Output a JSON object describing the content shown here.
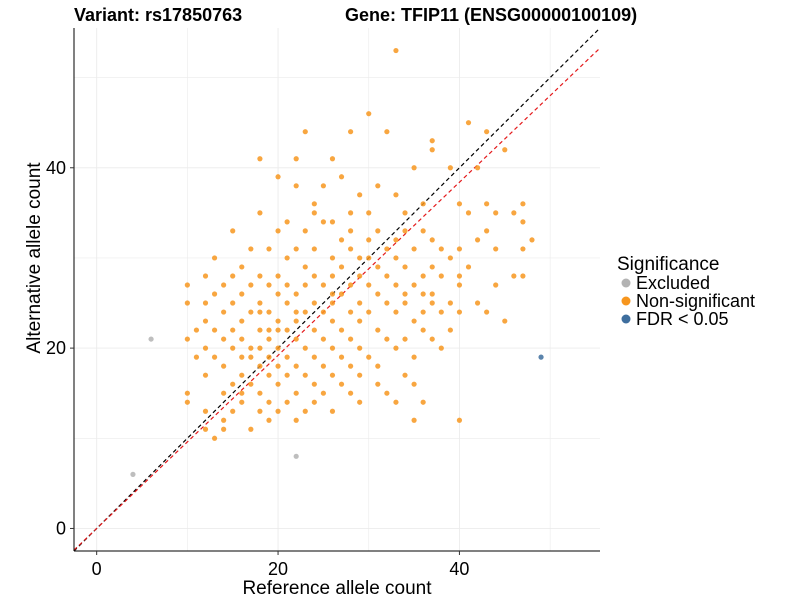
{
  "titles": {
    "variant": "Variant: rs17850763",
    "gene": "Gene: TFIP11 (ENSG00000100109)"
  },
  "chart_data": {
    "type": "scatter",
    "xlabel": "Reference allele count",
    "ylabel": "Alternative allele count",
    "xlim": [
      -2.5,
      55.5
    ],
    "ylim": [
      -2.5,
      55.5
    ],
    "xticks": [
      0,
      20,
      40
    ],
    "yticks": [
      0,
      20,
      40
    ],
    "grid": true,
    "legend_position": "right",
    "lines": [
      {
        "name": "identity",
        "color": "#000000",
        "style": "dashed",
        "intercept": 0,
        "slope": 1
      },
      {
        "name": "fit",
        "color": "#e41a1c",
        "style": "dashed",
        "intercept": 0,
        "slope": 0.96
      }
    ],
    "legend": {
      "title": "Significance",
      "entries": [
        {
          "label": "Excluded",
          "color": "#b3b3b3"
        },
        {
          "label": "Non-significant",
          "color": "#f7961e"
        },
        {
          "label": "FDR < 0.05",
          "color": "#3e6e9e"
        }
      ]
    },
    "series": [
      {
        "name": "Excluded",
        "color": "#b3b3b3",
        "points": [
          [
            4,
            6
          ],
          [
            6,
            21
          ],
          [
            22,
            8
          ]
        ]
      },
      {
        "name": "FDR < 0.05",
        "color": "#3e6e9e",
        "points": [
          [
            49,
            19
          ]
        ]
      },
      {
        "name": "Non-significant",
        "color": "#f7961e",
        "points": [
          [
            33,
            53
          ],
          [
            30,
            46
          ],
          [
            41,
            45
          ],
          [
            23,
            44
          ],
          [
            28,
            44
          ],
          [
            32,
            44
          ],
          [
            43,
            44
          ],
          [
            37,
            43
          ],
          [
            37,
            42
          ],
          [
            45,
            42
          ],
          [
            18,
            41
          ],
          [
            22,
            41
          ],
          [
            26,
            41
          ],
          [
            42,
            40
          ],
          [
            20,
            39
          ],
          [
            35,
            40
          ],
          [
            39,
            40
          ],
          [
            27,
            39
          ],
          [
            25,
            38
          ],
          [
            22,
            38
          ],
          [
            31,
            38
          ],
          [
            29,
            37
          ],
          [
            33,
            37
          ],
          [
            36,
            36
          ],
          [
            40,
            36
          ],
          [
            47,
            36
          ],
          [
            24,
            36
          ],
          [
            43,
            36
          ],
          [
            18,
            35
          ],
          [
            24,
            35
          ],
          [
            30,
            35
          ],
          [
            41,
            35
          ],
          [
            44,
            35
          ],
          [
            25,
            34
          ],
          [
            34,
            35
          ],
          [
            21,
            34
          ],
          [
            26,
            34
          ],
          [
            28,
            33
          ],
          [
            34,
            33
          ],
          [
            36,
            33
          ],
          [
            47,
            34
          ],
          [
            15,
            33
          ],
          [
            20,
            33
          ],
          [
            23,
            33
          ],
          [
            31,
            33
          ],
          [
            33,
            32
          ],
          [
            37,
            32
          ],
          [
            42,
            32
          ],
          [
            48,
            32
          ],
          [
            17,
            31
          ],
          [
            19,
            31
          ],
          [
            22,
            31
          ],
          [
            24,
            31
          ],
          [
            28,
            31
          ],
          [
            32,
            31
          ],
          [
            35,
            31
          ],
          [
            38,
            31
          ],
          [
            40,
            31
          ],
          [
            44,
            31
          ],
          [
            26,
            30
          ],
          [
            29,
            30
          ],
          [
            30,
            30
          ],
          [
            33,
            30
          ],
          [
            39,
            30
          ],
          [
            13,
            30
          ],
          [
            21,
            30
          ],
          [
            16,
            29
          ],
          [
            23,
            29
          ],
          [
            27,
            29
          ],
          [
            31,
            29
          ],
          [
            34,
            29
          ],
          [
            37,
            29
          ],
          [
            41,
            29
          ],
          [
            46,
            28
          ],
          [
            47,
            28
          ],
          [
            12,
            28
          ],
          [
            15,
            28
          ],
          [
            18,
            28
          ],
          [
            20,
            28
          ],
          [
            24,
            28
          ],
          [
            26,
            28
          ],
          [
            29,
            28
          ],
          [
            32,
            28
          ],
          [
            36,
            28
          ],
          [
            38,
            28
          ],
          [
            10,
            27
          ],
          [
            14,
            27
          ],
          [
            17,
            27
          ],
          [
            19,
            27
          ],
          [
            21,
            27
          ],
          [
            23,
            27
          ],
          [
            25,
            27
          ],
          [
            28,
            27
          ],
          [
            30,
            27
          ],
          [
            33,
            27
          ],
          [
            35,
            27
          ],
          [
            40,
            27
          ],
          [
            44,
            27
          ],
          [
            13,
            26
          ],
          [
            16,
            26
          ],
          [
            20,
            26
          ],
          [
            22,
            26
          ],
          [
            27,
            26
          ],
          [
            31,
            26
          ],
          [
            36,
            26
          ],
          [
            10,
            25
          ],
          [
            12,
            25
          ],
          [
            15,
            25
          ],
          [
            18,
            25
          ],
          [
            21,
            25
          ],
          [
            24,
            25
          ],
          [
            26,
            25
          ],
          [
            29,
            25
          ],
          [
            32,
            25
          ],
          [
            34,
            25
          ],
          [
            37,
            25
          ],
          [
            39,
            25
          ],
          [
            42,
            25
          ],
          [
            14,
            24
          ],
          [
            17,
            24
          ],
          [
            19,
            24
          ],
          [
            23,
            24
          ],
          [
            25,
            24
          ],
          [
            28,
            24
          ],
          [
            30,
            24
          ],
          [
            33,
            24
          ],
          [
            36,
            24
          ],
          [
            38,
            24
          ],
          [
            40,
            24
          ],
          [
            43,
            24
          ],
          [
            12,
            23
          ],
          [
            16,
            23
          ],
          [
            20,
            23
          ],
          [
            22,
            23
          ],
          [
            26,
            23
          ],
          [
            29,
            23
          ],
          [
            35,
            23
          ],
          [
            45,
            23
          ],
          [
            11,
            22
          ],
          [
            13,
            22
          ],
          [
            15,
            22
          ],
          [
            18,
            22
          ],
          [
            21,
            22
          ],
          [
            24,
            22
          ],
          [
            27,
            22
          ],
          [
            31,
            22
          ],
          [
            36,
            22
          ],
          [
            39,
            22
          ],
          [
            10,
            21
          ],
          [
            14,
            21
          ],
          [
            16,
            21
          ],
          [
            19,
            21
          ],
          [
            22,
            21
          ],
          [
            25,
            21
          ],
          [
            28,
            21
          ],
          [
            32,
            21
          ],
          [
            34,
            21
          ],
          [
            37,
            21
          ],
          [
            12,
            20
          ],
          [
            15,
            20
          ],
          [
            17,
            20
          ],
          [
            18,
            20
          ],
          [
            20,
            20
          ],
          [
            23,
            20
          ],
          [
            26,
            20
          ],
          [
            29,
            20
          ],
          [
            33,
            20
          ],
          [
            38,
            20
          ],
          [
            11,
            19
          ],
          [
            13,
            19
          ],
          [
            16,
            19
          ],
          [
            17,
            19
          ],
          [
            19,
            19
          ],
          [
            21,
            19
          ],
          [
            24,
            19
          ],
          [
            27,
            19
          ],
          [
            30,
            19
          ],
          [
            35,
            19
          ],
          [
            14,
            18
          ],
          [
            18,
            18
          ],
          [
            20,
            18
          ],
          [
            22,
            18
          ],
          [
            25,
            18
          ],
          [
            28,
            18
          ],
          [
            31,
            18
          ],
          [
            12,
            17
          ],
          [
            16,
            17
          ],
          [
            19,
            17
          ],
          [
            21,
            17
          ],
          [
            23,
            17
          ],
          [
            26,
            17
          ],
          [
            29,
            17
          ],
          [
            34,
            17
          ],
          [
            15,
            16
          ],
          [
            17,
            16
          ],
          [
            20,
            16
          ],
          [
            24,
            16
          ],
          [
            27,
            16
          ],
          [
            31,
            16
          ],
          [
            35,
            16
          ],
          [
            14,
            15
          ],
          [
            18,
            15
          ],
          [
            22,
            15
          ],
          [
            25,
            15
          ],
          [
            28,
            15
          ],
          [
            32,
            15
          ],
          [
            10,
            14
          ],
          [
            16,
            14
          ],
          [
            19,
            14
          ],
          [
            21,
            14
          ],
          [
            24,
            14
          ],
          [
            29,
            14
          ],
          [
            33,
            14
          ],
          [
            36,
            14
          ],
          [
            12,
            13
          ],
          [
            15,
            13
          ],
          [
            18,
            13
          ],
          [
            20,
            13
          ],
          [
            23,
            13
          ],
          [
            26,
            13
          ],
          [
            14,
            12
          ],
          [
            19,
            12
          ],
          [
            22,
            12
          ],
          [
            35,
            12
          ],
          [
            40,
            12
          ],
          [
            12,
            11
          ],
          [
            14,
            11
          ],
          [
            17,
            11
          ],
          [
            13,
            10
          ],
          [
            10,
            15
          ],
          [
            16,
            15
          ],
          [
            19,
            22
          ],
          [
            18,
            24
          ],
          [
            20,
            22
          ],
          [
            22,
            24
          ],
          [
            26,
            26
          ],
          [
            27,
            32
          ],
          [
            28,
            35
          ],
          [
            30,
            32
          ],
          [
            34,
            26
          ],
          [
            37,
            26
          ],
          [
            40,
            28
          ],
          [
            43,
            33
          ],
          [
            47,
            31
          ],
          [
            46,
            35
          ]
        ]
      }
    ]
  }
}
